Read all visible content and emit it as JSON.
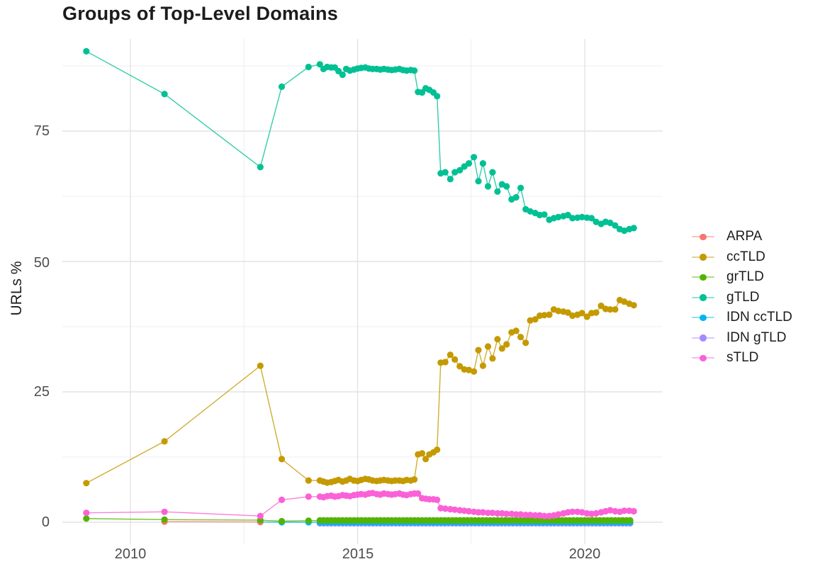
{
  "chart_data": {
    "type": "line",
    "title": "Groups of Top-Level Domains",
    "xlabel": "",
    "ylabel": "URLs %",
    "grid": true,
    "legend_position": "right",
    "xlim": [
      2008.5,
      2021.7
    ],
    "ylim": [
      -4,
      93
    ],
    "x_ticks": [
      {
        "label": "2010",
        "year": 2010
      },
      {
        "label": "2015",
        "year": 2015
      },
      {
        "label": "2020",
        "year": 2020
      }
    ],
    "y_ticks": [
      {
        "label": "0",
        "value": 0
      },
      {
        "label": "25",
        "value": 25
      },
      {
        "label": "50",
        "value": 50
      },
      {
        "label": "75",
        "value": 75
      }
    ],
    "x_minor": [
      2012.5,
      2017.5
    ],
    "y_minor": [
      12.5,
      37.5,
      62.5,
      87.5
    ],
    "draw_order": [
      5,
      4,
      0,
      2,
      3,
      1,
      6
    ],
    "series": [
      {
        "name": "ARPA",
        "color": "#F8766D",
        "points": [
          [
            2010.75,
            0.1
          ],
          [
            2012.86,
            0.05
          ]
        ]
      },
      {
        "name": "ccTLD",
        "color": "#C49A00",
        "points": [
          [
            2009.03,
            7.5
          ],
          [
            2010.75,
            15.5
          ],
          [
            2012.86,
            30.0
          ],
          [
            2013.33,
            12.1
          ],
          [
            2013.92,
            8.0
          ],
          [
            2014.17,
            8.0
          ],
          [
            2014.25,
            7.8
          ],
          [
            2014.33,
            7.6
          ],
          [
            2014.42,
            7.7
          ],
          [
            2014.5,
            7.9
          ],
          [
            2014.58,
            8.1
          ],
          [
            2014.67,
            7.8
          ],
          [
            2014.75,
            8.0
          ],
          [
            2014.83,
            8.3
          ],
          [
            2014.92,
            8.0
          ],
          [
            2015.0,
            7.9
          ],
          [
            2015.08,
            8.1
          ],
          [
            2015.17,
            8.3
          ],
          [
            2015.25,
            8.2
          ],
          [
            2015.33,
            8.0
          ],
          [
            2015.42,
            7.9
          ],
          [
            2015.5,
            8.0
          ],
          [
            2015.58,
            8.1
          ],
          [
            2015.67,
            8.0
          ],
          [
            2015.75,
            7.9
          ],
          [
            2015.83,
            8.0
          ],
          [
            2015.92,
            8.0
          ],
          [
            2016.0,
            7.9
          ],
          [
            2016.08,
            8.1
          ],
          [
            2016.17,
            8.0
          ],
          [
            2016.25,
            8.2
          ],
          [
            2016.33,
            13.0
          ],
          [
            2016.42,
            13.2
          ],
          [
            2016.5,
            12.1
          ],
          [
            2016.58,
            13.0
          ],
          [
            2016.67,
            13.4
          ],
          [
            2016.75,
            13.9
          ],
          [
            2016.83,
            30.6
          ],
          [
            2016.93,
            30.7
          ],
          [
            2017.04,
            32.1
          ],
          [
            2017.14,
            31.2
          ],
          [
            2017.25,
            29.9
          ],
          [
            2017.35,
            29.3
          ],
          [
            2017.45,
            29.2
          ],
          [
            2017.56,
            28.9
          ],
          [
            2017.66,
            33.0
          ],
          [
            2017.76,
            30.0
          ],
          [
            2017.87,
            33.7
          ],
          [
            2017.97,
            31.4
          ],
          [
            2018.08,
            35.1
          ],
          [
            2018.18,
            33.3
          ],
          [
            2018.28,
            34.1
          ],
          [
            2018.39,
            36.4
          ],
          [
            2018.49,
            36.7
          ],
          [
            2018.59,
            35.5
          ],
          [
            2018.7,
            34.4
          ],
          [
            2018.8,
            38.7
          ],
          [
            2018.91,
            38.9
          ],
          [
            2019.01,
            39.6
          ],
          [
            2019.11,
            39.7
          ],
          [
            2019.22,
            39.8
          ],
          [
            2019.32,
            40.8
          ],
          [
            2019.42,
            40.5
          ],
          [
            2019.53,
            40.4
          ],
          [
            2019.63,
            40.2
          ],
          [
            2019.73,
            39.6
          ],
          [
            2019.84,
            39.8
          ],
          [
            2019.94,
            40.1
          ],
          [
            2020.05,
            39.4
          ],
          [
            2020.15,
            40.1
          ],
          [
            2020.25,
            40.2
          ],
          [
            2020.36,
            41.5
          ],
          [
            2020.46,
            40.9
          ],
          [
            2020.56,
            40.8
          ],
          [
            2020.67,
            40.8
          ],
          [
            2020.77,
            42.6
          ],
          [
            2020.87,
            42.3
          ],
          [
            2020.98,
            41.9
          ],
          [
            2021.08,
            41.6
          ]
        ]
      },
      {
        "name": "grTLD",
        "color": "#53B400",
        "points": [
          [
            2009.03,
            0.7
          ],
          [
            2010.75,
            0.5
          ],
          [
            2012.86,
            0.4
          ],
          [
            2013.33,
            0.2
          ],
          [
            2013.92,
            0.3
          ]
        ],
        "flat": {
          "from": 2014.17,
          "to": 2021.08,
          "step": 0.0833,
          "value": 0.35
        }
      },
      {
        "name": "gTLD",
        "color": "#00C094",
        "points": [
          [
            2009.03,
            90.3
          ],
          [
            2010.75,
            82.1
          ],
          [
            2012.86,
            68.1
          ],
          [
            2013.33,
            83.5
          ],
          [
            2013.92,
            87.3
          ],
          [
            2014.17,
            87.8
          ],
          [
            2014.25,
            86.9
          ],
          [
            2014.33,
            87.3
          ],
          [
            2014.42,
            87.2
          ],
          [
            2014.5,
            87.2
          ],
          [
            2014.58,
            86.5
          ],
          [
            2014.67,
            85.8
          ],
          [
            2014.75,
            86.9
          ],
          [
            2014.83,
            86.6
          ],
          [
            2014.92,
            86.8
          ],
          [
            2015.0,
            87.0
          ],
          [
            2015.08,
            87.1
          ],
          [
            2015.17,
            87.2
          ],
          [
            2015.25,
            87.0
          ],
          [
            2015.33,
            86.9
          ],
          [
            2015.42,
            86.9
          ],
          [
            2015.5,
            86.8
          ],
          [
            2015.58,
            86.9
          ],
          [
            2015.67,
            86.8
          ],
          [
            2015.75,
            86.7
          ],
          [
            2015.83,
            86.8
          ],
          [
            2015.92,
            86.9
          ],
          [
            2016.0,
            86.7
          ],
          [
            2016.08,
            86.6
          ],
          [
            2016.17,
            86.7
          ],
          [
            2016.25,
            86.6
          ],
          [
            2016.33,
            82.5
          ],
          [
            2016.42,
            82.4
          ],
          [
            2016.5,
            83.2
          ],
          [
            2016.58,
            82.9
          ],
          [
            2016.67,
            82.4
          ],
          [
            2016.75,
            81.7
          ],
          [
            2016.83,
            66.9
          ],
          [
            2016.93,
            67.1
          ],
          [
            2017.04,
            65.8
          ],
          [
            2017.14,
            67.1
          ],
          [
            2017.25,
            67.5
          ],
          [
            2017.35,
            68.2
          ],
          [
            2017.45,
            68.8
          ],
          [
            2017.56,
            70.0
          ],
          [
            2017.66,
            65.4
          ],
          [
            2017.76,
            68.8
          ],
          [
            2017.87,
            64.4
          ],
          [
            2017.97,
            67.1
          ],
          [
            2018.08,
            63.4
          ],
          [
            2018.18,
            64.8
          ],
          [
            2018.28,
            64.4
          ],
          [
            2018.39,
            61.9
          ],
          [
            2018.49,
            62.3
          ],
          [
            2018.59,
            64.1
          ],
          [
            2018.7,
            60.0
          ],
          [
            2018.8,
            59.6
          ],
          [
            2018.91,
            59.3
          ],
          [
            2019.01,
            58.9
          ],
          [
            2019.11,
            59.0
          ],
          [
            2019.22,
            58.0
          ],
          [
            2019.32,
            58.3
          ],
          [
            2019.42,
            58.5
          ],
          [
            2019.53,
            58.7
          ],
          [
            2019.63,
            58.9
          ],
          [
            2019.73,
            58.3
          ],
          [
            2019.84,
            58.4
          ],
          [
            2019.94,
            58.5
          ],
          [
            2020.05,
            58.4
          ],
          [
            2020.15,
            58.3
          ],
          [
            2020.25,
            57.6
          ],
          [
            2020.36,
            57.2
          ],
          [
            2020.46,
            57.6
          ],
          [
            2020.56,
            57.4
          ],
          [
            2020.67,
            56.9
          ],
          [
            2020.77,
            56.2
          ],
          [
            2020.87,
            55.9
          ],
          [
            2020.98,
            56.2
          ],
          [
            2021.08,
            56.4
          ]
        ]
      },
      {
        "name": "IDN ccTLD",
        "color": "#00B6EB",
        "points": [
          [
            2012.86,
            0.05
          ],
          [
            2013.33,
            0.0
          ],
          [
            2013.92,
            0.0
          ]
        ],
        "flat": {
          "from": 2014.17,
          "to": 2021.08,
          "step": 0.0833,
          "value": 0.0
        }
      },
      {
        "name": "IDN gTLD",
        "color": "#A58AFF",
        "points": [],
        "flat": {
          "from": 2014.17,
          "to": 2021.08,
          "step": 0.0833,
          "value": -0.2
        }
      },
      {
        "name": "sTLD",
        "color": "#FB61D7",
        "points": [
          [
            2009.03,
            1.8
          ],
          [
            2010.75,
            2.0
          ],
          [
            2012.86,
            1.2
          ],
          [
            2013.33,
            4.3
          ],
          [
            2013.92,
            4.9
          ],
          [
            2014.17,
            4.9
          ],
          [
            2014.25,
            4.8
          ],
          [
            2014.33,
            5.0
          ],
          [
            2014.42,
            5.1
          ],
          [
            2014.5,
            4.9
          ],
          [
            2014.58,
            5.0
          ],
          [
            2014.67,
            5.2
          ],
          [
            2014.75,
            5.1
          ],
          [
            2014.83,
            5.0
          ],
          [
            2014.92,
            5.2
          ],
          [
            2015.0,
            5.3
          ],
          [
            2015.08,
            5.4
          ],
          [
            2015.17,
            5.3
          ],
          [
            2015.25,
            5.5
          ],
          [
            2015.33,
            5.6
          ],
          [
            2015.42,
            5.4
          ],
          [
            2015.5,
            5.3
          ],
          [
            2015.58,
            5.5
          ],
          [
            2015.67,
            5.4
          ],
          [
            2015.75,
            5.3
          ],
          [
            2015.83,
            5.4
          ],
          [
            2015.92,
            5.5
          ],
          [
            2016.0,
            5.3
          ],
          [
            2016.08,
            5.2
          ],
          [
            2016.17,
            5.4
          ],
          [
            2016.25,
            5.5
          ],
          [
            2016.33,
            5.5
          ],
          [
            2016.42,
            4.6
          ],
          [
            2016.5,
            4.5
          ],
          [
            2016.58,
            4.4
          ],
          [
            2016.67,
            4.4
          ],
          [
            2016.75,
            4.3
          ],
          [
            2016.83,
            2.7
          ],
          [
            2016.93,
            2.6
          ],
          [
            2017.04,
            2.5
          ],
          [
            2017.14,
            2.4
          ],
          [
            2017.25,
            2.3
          ],
          [
            2017.35,
            2.2
          ],
          [
            2017.45,
            2.1
          ],
          [
            2017.56,
            2.0
          ],
          [
            2017.66,
            1.9
          ],
          [
            2017.76,
            1.9
          ],
          [
            2017.87,
            1.8
          ],
          [
            2017.97,
            1.8
          ],
          [
            2018.08,
            1.7
          ],
          [
            2018.18,
            1.7
          ],
          [
            2018.28,
            1.6
          ],
          [
            2018.39,
            1.6
          ],
          [
            2018.49,
            1.5
          ],
          [
            2018.59,
            1.5
          ],
          [
            2018.7,
            1.4
          ],
          [
            2018.8,
            1.4
          ],
          [
            2018.91,
            1.3
          ],
          [
            2019.01,
            1.3
          ],
          [
            2019.11,
            1.2
          ],
          [
            2019.22,
            1.2
          ],
          [
            2019.32,
            1.3
          ],
          [
            2019.42,
            1.5
          ],
          [
            2019.53,
            1.7
          ],
          [
            2019.63,
            1.9
          ],
          [
            2019.73,
            2.0
          ],
          [
            2019.84,
            2.0
          ],
          [
            2019.94,
            1.9
          ],
          [
            2020.05,
            1.7
          ],
          [
            2020.15,
            1.6
          ],
          [
            2020.25,
            1.7
          ],
          [
            2020.36,
            1.9
          ],
          [
            2020.46,
            2.1
          ],
          [
            2020.56,
            2.3
          ],
          [
            2020.67,
            2.1
          ],
          [
            2020.77,
            2.0
          ],
          [
            2020.87,
            2.2
          ],
          [
            2020.98,
            2.2
          ],
          [
            2021.08,
            2.1
          ]
        ]
      }
    ]
  }
}
